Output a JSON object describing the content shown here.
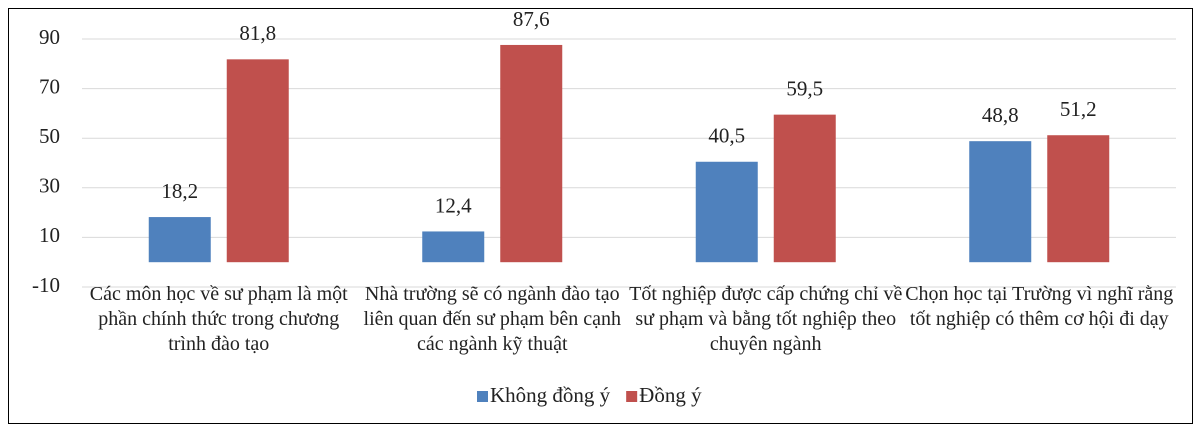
{
  "chart_data": {
    "type": "bar",
    "categories": [
      "Các môn học về sư phạm là một phần chính thức trong chương trình đào tạo",
      "Nhà trường sẽ có ngành đào tạo liên quan đến sư phạm bên cạnh các ngành kỹ thuật",
      "Tốt nghiệp được cấp chứng chỉ về sư phạm và bằng tốt nghiệp theo chuyên ngành",
      "Chọn học tại Trường vì nghĩ rằng tốt nghiệp có thêm cơ hội đi dạy"
    ],
    "series": [
      {
        "name": "Không đồng ý",
        "color": "#4f81bd",
        "values": [
          18.2,
          12.4,
          40.5,
          48.8
        ],
        "value_labels": [
          "18,2",
          "12,4",
          "40,5",
          "48,8"
        ]
      },
      {
        "name": "Đồng ý",
        "color": "#c0504d",
        "values": [
          81.8,
          87.6,
          59.5,
          51.2
        ],
        "value_labels": [
          "81,8",
          "87,6",
          "59,5",
          "51,2"
        ]
      }
    ],
    "ylim": [
      -10,
      90
    ],
    "yticks": [
      -10,
      10,
      30,
      50,
      70,
      90
    ],
    "grid": true,
    "legend": "bottom"
  }
}
